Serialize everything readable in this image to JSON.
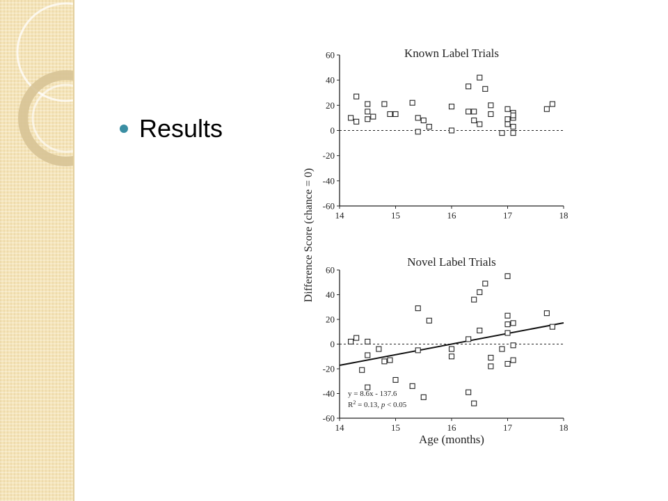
{
  "slide": {
    "bullet_text": "Results"
  },
  "chart_data": [
    {
      "type": "scatter",
      "title": "Known Label Trials",
      "xlabel": "",
      "ylabel": "Difference Score (chance = 0)",
      "xlim": [
        14,
        18
      ],
      "ylim": [
        -60,
        60
      ],
      "xticks": [
        14,
        15,
        16,
        17,
        18
      ],
      "yticks": [
        60,
        40,
        20,
        0,
        -20,
        -40,
        -60
      ],
      "reference_line_y": 0,
      "points": [
        [
          14.3,
          27
        ],
        [
          14.2,
          10
        ],
        [
          14.3,
          7
        ],
        [
          14.5,
          21
        ],
        [
          14.5,
          15
        ],
        [
          14.6,
          11
        ],
        [
          14.5,
          9
        ],
        [
          14.8,
          21
        ],
        [
          14.9,
          13
        ],
        [
          15.0,
          13
        ],
        [
          15.3,
          22
        ],
        [
          15.4,
          10
        ],
        [
          15.4,
          -1
        ],
        [
          15.5,
          8
        ],
        [
          15.6,
          3
        ],
        [
          16.0,
          19
        ],
        [
          16.0,
          0
        ],
        [
          16.3,
          35
        ],
        [
          16.3,
          15
        ],
        [
          16.4,
          15
        ],
        [
          16.4,
          8
        ],
        [
          16.5,
          42
        ],
        [
          16.5,
          5
        ],
        [
          16.6,
          33
        ],
        [
          16.7,
          20
        ],
        [
          16.7,
          13
        ],
        [
          16.9,
          -2
        ],
        [
          17.0,
          17
        ],
        [
          17.0,
          9
        ],
        [
          17.0,
          5
        ],
        [
          17.1,
          14
        ],
        [
          17.1,
          10
        ],
        [
          17.1,
          3
        ],
        [
          17.1,
          -2
        ],
        [
          17.1,
          12
        ],
        [
          17.7,
          17
        ],
        [
          17.8,
          21
        ]
      ]
    },
    {
      "type": "scatter",
      "title": "Novel Label Trials",
      "xlabel": "Age (months)",
      "ylabel": "Difference Score (chance = 0)",
      "xlim": [
        14,
        18
      ],
      "ylim": [
        -60,
        60
      ],
      "xticks": [
        14,
        15,
        16,
        17,
        18
      ],
      "yticks": [
        60,
        40,
        20,
        0,
        -20,
        -40,
        -60
      ],
      "reference_line_y": 0,
      "regression": {
        "slope": 8.6,
        "intercept": -137.6
      },
      "annotation": [
        "y = 8.6x - 137.6",
        "R",
        "2",
        " = 0.13, ",
        "p",
        " < 0.05"
      ],
      "points": [
        [
          14.3,
          5
        ],
        [
          14.2,
          2
        ],
        [
          14.4,
          -21
        ],
        [
          14.5,
          2
        ],
        [
          14.5,
          -9
        ],
        [
          14.7,
          -4
        ],
        [
          14.5,
          -35
        ],
        [
          14.8,
          -14
        ],
        [
          14.9,
          -13
        ],
        [
          15.0,
          -29
        ],
        [
          15.3,
          -34
        ],
        [
          15.4,
          29
        ],
        [
          15.4,
          -5
        ],
        [
          15.5,
          -43
        ],
        [
          15.6,
          19
        ],
        [
          16.0,
          -4
        ],
        [
          16.0,
          -10
        ],
        [
          16.3,
          4
        ],
        [
          16.3,
          -39
        ],
        [
          16.4,
          36
        ],
        [
          16.4,
          -48
        ],
        [
          16.5,
          42
        ],
        [
          16.5,
          11
        ],
        [
          16.6,
          49
        ],
        [
          16.7,
          -11
        ],
        [
          16.7,
          -18
        ],
        [
          16.9,
          -4
        ],
        [
          17.0,
          55
        ],
        [
          17.0,
          23
        ],
        [
          17.0,
          16
        ],
        [
          17.1,
          17
        ],
        [
          17.0,
          9
        ],
        [
          17.1,
          -1
        ],
        [
          17.0,
          -16
        ],
        [
          17.1,
          -13
        ],
        [
          17.7,
          25
        ],
        [
          17.8,
          14
        ]
      ]
    }
  ]
}
